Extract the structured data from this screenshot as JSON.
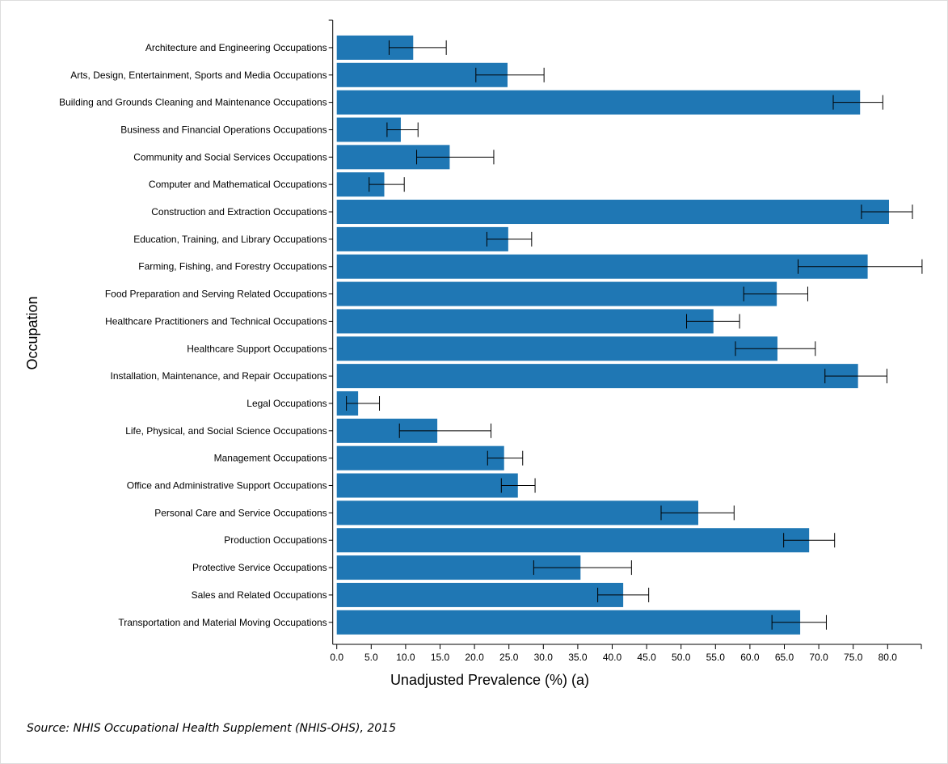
{
  "chart_data": {
    "type": "bar",
    "orientation": "horizontal",
    "xlabel": "Unadjusted Prevalence (%) (a)",
    "ylabel": "Occupation",
    "xlim": [
      0,
      85
    ],
    "xticks": [
      "0.0",
      "5.0",
      "10.0",
      "15.0",
      "20.0",
      "25.0",
      "30.0",
      "35.0",
      "40.0",
      "45.0",
      "50.0",
      "55.0",
      "60.0",
      "65.0",
      "70.0",
      "75.0",
      "80.0"
    ],
    "grid": false,
    "bar_color": "#1f77b4",
    "categories": [
      "Architecture and Engineering Occupations",
      "Arts, Design, Entertainment, Sports and Media Occupations",
      "Building and Grounds Cleaning and Maintenance Occupations",
      "Business and Financial Operations Occupations",
      "Community and Social Services Occupations",
      "Computer and Mathematical Occupations",
      "Construction and Extraction Occupations",
      "Education, Training, and Library Occupations",
      "Farming, Fishing, and Forestry Occupations",
      "Food Preparation and Serving Related Occupations",
      "Healthcare Practitioners and Technical Occupations",
      "Healthcare Support Occupations",
      "Installation, Maintenance, and Repair Occupations",
      "Legal Occupations",
      "Life, Physical, and Social Science Occupations",
      "Management Occupations",
      "Office and Administrative Support Occupations",
      "Personal Care and Service Occupations",
      "Production Occupations",
      "Protective Service Occupations",
      "Sales and Related Occupations",
      "Transportation and Material Moving Occupations"
    ],
    "values": [
      11.1,
      24.8,
      76.0,
      9.3,
      16.4,
      6.9,
      80.2,
      24.9,
      77.1,
      63.9,
      54.7,
      64.0,
      75.7,
      3.1,
      14.6,
      24.3,
      26.3,
      52.5,
      68.6,
      35.4,
      41.6,
      67.3
    ],
    "ci_low": [
      7.6,
      20.2,
      72.1,
      7.3,
      11.6,
      4.7,
      76.2,
      21.8,
      67.0,
      59.1,
      50.8,
      57.9,
      70.9,
      1.4,
      9.1,
      21.9,
      23.9,
      47.1,
      64.9,
      28.6,
      37.9,
      63.2
    ],
    "ci_high": [
      15.9,
      30.1,
      79.3,
      11.8,
      22.8,
      9.8,
      83.6,
      28.3,
      85.0,
      68.4,
      58.5,
      69.5,
      79.9,
      6.2,
      22.4,
      27.0,
      28.8,
      57.7,
      72.3,
      42.8,
      45.3,
      71.1
    ]
  },
  "source": "Source: NHIS Occupational Health Supplement (NHIS-OHS), 2015"
}
